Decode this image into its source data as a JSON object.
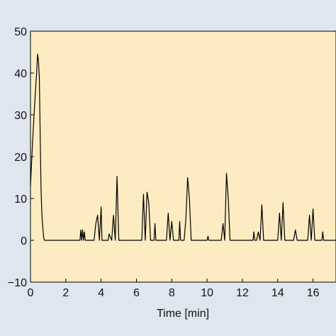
{
  "chart_data": {
    "type": "line",
    "title": "",
    "xlabel": "Time [min]",
    "ylabel": "",
    "xlim": [
      0,
      17.3
    ],
    "ylim": [
      -10,
      50
    ],
    "x_ticks": [
      0,
      2,
      4,
      6,
      8,
      10,
      12,
      14,
      16
    ],
    "y_ticks": [
      -10,
      0,
      10,
      20,
      30,
      40,
      50
    ],
    "grid": false,
    "plot_background": "#fdecc2",
    "page_background": "#dfe6ef",
    "line_color": "#000000",
    "series": [
      {
        "x": [
          0.0,
          0.1,
          0.2,
          0.3,
          0.35,
          0.4,
          0.45,
          0.5,
          0.55,
          0.6,
          0.65,
          0.7,
          0.75,
          0.8,
          0.9,
          1.0,
          2.8,
          2.85,
          2.9,
          2.95,
          3.0,
          3.05,
          3.1,
          3.15,
          3.6,
          3.7,
          3.8,
          3.9,
          4.0,
          4.05,
          4.4,
          4.45,
          4.6,
          4.7,
          4.8,
          4.9,
          5.0,
          5.1,
          5.2,
          5.3,
          6.3,
          6.4,
          6.5,
          6.6,
          6.7,
          6.8,
          7.0,
          7.05,
          7.1,
          7.7,
          7.8,
          7.9,
          8.0,
          8.1,
          8.4,
          8.45,
          8.5,
          8.7,
          8.8,
          8.9,
          9.0,
          9.1,
          9.2,
          9.3,
          10.0,
          10.05,
          10.1,
          10.8,
          10.9,
          11.0,
          11.1,
          11.2,
          11.3,
          11.4,
          12.6,
          12.65,
          12.7,
          12.8,
          12.9,
          13.0,
          13.1,
          13.2,
          13.3,
          13.4,
          13.5,
          13.6,
          14.0,
          14.1,
          14.2,
          14.3,
          14.4,
          14.5,
          14.9,
          15.0,
          15.1,
          15.7,
          15.8,
          15.9,
          16.0,
          16.1,
          16.5,
          16.55,
          16.6,
          17.3
        ],
        "y": [
          13,
          22,
          30,
          37,
          40,
          44.5,
          43,
          39,
          25,
          12,
          6,
          3,
          0.5,
          0,
          0,
          0,
          0,
          2.5,
          0,
          2.5,
          0,
          2,
          0,
          0,
          0,
          4,
          6,
          0,
          8,
          0,
          0,
          1.5,
          0,
          6,
          0,
          15.3,
          0,
          0,
          0,
          0,
          0,
          11,
          0,
          11.5,
          9,
          0,
          0,
          4,
          0,
          0,
          6.5,
          0,
          4.5,
          0,
          0,
          4.5,
          0,
          0,
          5,
          15,
          10,
          0,
          0,
          0,
          0,
          1,
          0,
          0,
          4,
          0,
          16,
          10,
          0,
          0,
          0,
          2,
          0,
          0,
          2,
          0,
          8.5,
          0,
          0,
          0,
          0,
          0,
          0,
          6.5,
          0,
          9,
          0,
          0,
          0,
          2.5,
          0,
          0,
          6,
          0,
          7.5,
          0,
          0,
          2,
          0,
          0
        ]
      }
    ]
  }
}
